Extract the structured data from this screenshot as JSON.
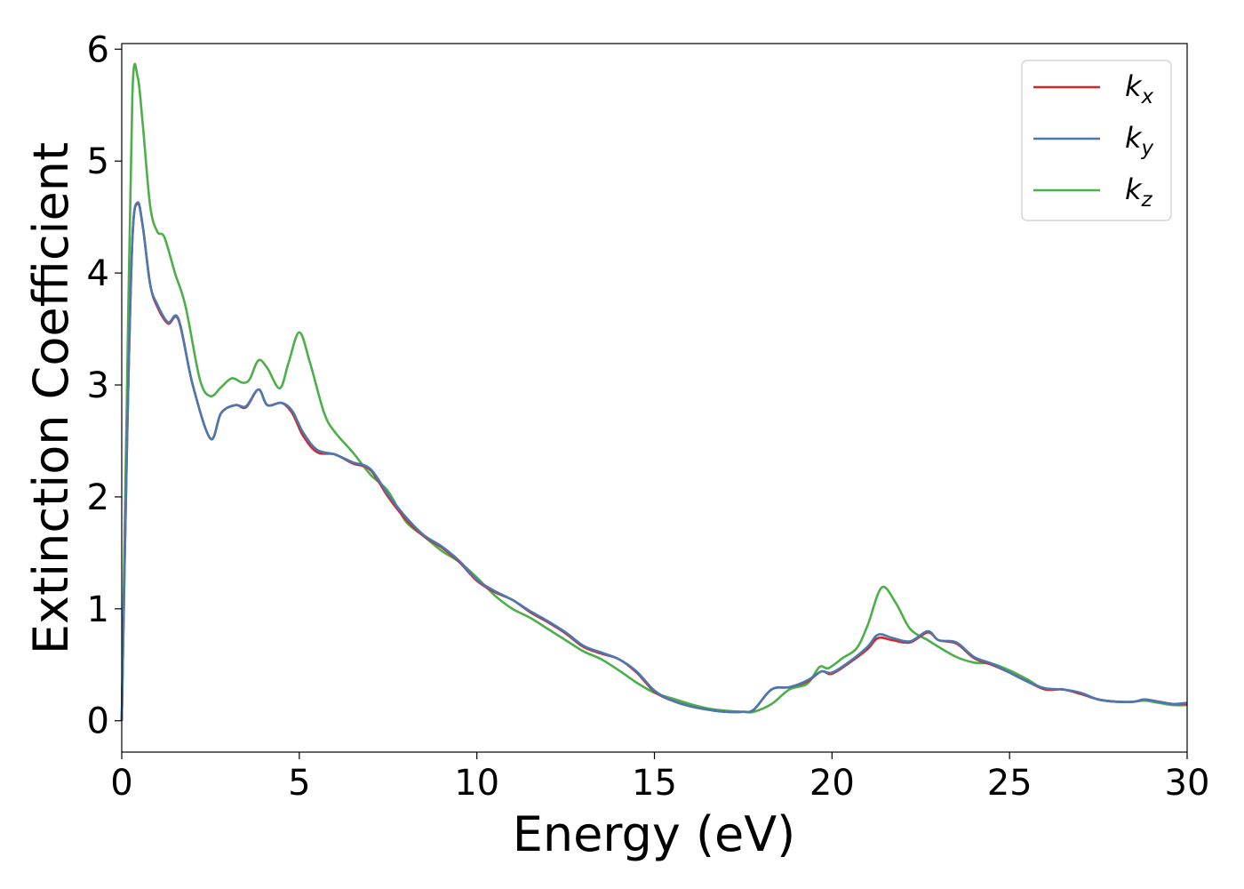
{
  "chart_data": {
    "type": "line",
    "xlabel": "Energy (eV)",
    "ylabel": "Extinction Coefficient",
    "xlim": [
      0,
      30
    ],
    "ylim": [
      -0.28,
      6.05
    ],
    "xticks": [
      0,
      5,
      10,
      15,
      20,
      25,
      30
    ],
    "yticks": [
      0,
      1,
      2,
      3,
      4,
      5,
      6
    ],
    "grid": false,
    "legend_position": "top-right",
    "series": [
      {
        "name": "k",
        "sub": "x",
        "color": "#d62728",
        "x": [
          0,
          0.15,
          0.3,
          0.45,
          0.6,
          0.8,
          1.0,
          1.3,
          1.6,
          2.0,
          2.5,
          2.8,
          3.2,
          3.5,
          3.85,
          4.1,
          4.5,
          4.8,
          5.1,
          5.5,
          6.0,
          6.5,
          7.0,
          7.5,
          8.0,
          8.5,
          9.0,
          9.5,
          10.0,
          10.5,
          11.0,
          11.5,
          12.0,
          12.5,
          13.0,
          13.5,
          14.0,
          14.5,
          15.0,
          15.5,
          16.0,
          16.5,
          17.0,
          17.5,
          17.8,
          18.3,
          18.8,
          19.3,
          19.7,
          20.0,
          20.5,
          21.0,
          21.3,
          21.7,
          22.2,
          22.7,
          23.0,
          23.5,
          24.0,
          24.5,
          25.0,
          25.5,
          26.0,
          26.5,
          27.0,
          27.5,
          28.0,
          28.5,
          28.8,
          29.2,
          29.6,
          30.0
        ],
        "y": [
          0.0,
          2.5,
          4.3,
          4.62,
          4.4,
          3.9,
          3.7,
          3.55,
          3.58,
          3.0,
          2.52,
          2.75,
          2.82,
          2.8,
          2.96,
          2.82,
          2.84,
          2.75,
          2.55,
          2.4,
          2.38,
          2.3,
          2.24,
          2.0,
          1.8,
          1.65,
          1.55,
          1.42,
          1.25,
          1.15,
          1.08,
          0.97,
          0.88,
          0.78,
          0.66,
          0.6,
          0.55,
          0.43,
          0.26,
          0.18,
          0.13,
          0.1,
          0.08,
          0.08,
          0.1,
          0.28,
          0.3,
          0.35,
          0.44,
          0.42,
          0.52,
          0.64,
          0.74,
          0.72,
          0.7,
          0.79,
          0.72,
          0.69,
          0.56,
          0.5,
          0.43,
          0.35,
          0.28,
          0.28,
          0.24,
          0.19,
          0.17,
          0.17,
          0.19,
          0.17,
          0.15,
          0.15
        ]
      },
      {
        "name": "k",
        "sub": "y",
        "color": "#4a78b0",
        "x": [
          0,
          0.15,
          0.3,
          0.45,
          0.6,
          0.8,
          1.0,
          1.3,
          1.6,
          2.0,
          2.5,
          2.8,
          3.2,
          3.5,
          3.85,
          4.1,
          4.5,
          4.8,
          5.1,
          5.5,
          6.0,
          6.5,
          7.0,
          7.5,
          8.0,
          8.5,
          9.0,
          9.5,
          10.0,
          10.5,
          11.0,
          11.5,
          12.0,
          12.5,
          13.0,
          13.5,
          14.0,
          14.5,
          15.0,
          15.5,
          16.0,
          16.5,
          17.0,
          17.5,
          17.8,
          18.3,
          18.8,
          19.3,
          19.7,
          20.0,
          20.5,
          21.0,
          21.3,
          21.7,
          22.2,
          22.7,
          23.0,
          23.5,
          24.0,
          24.5,
          25.0,
          25.5,
          26.0,
          26.5,
          27.0,
          27.5,
          28.0,
          28.5,
          28.8,
          29.2,
          29.6,
          30.0
        ],
        "y": [
          0.0,
          2.5,
          4.3,
          4.63,
          4.4,
          3.9,
          3.72,
          3.56,
          3.59,
          3.0,
          2.52,
          2.75,
          2.82,
          2.81,
          2.96,
          2.82,
          2.84,
          2.77,
          2.58,
          2.42,
          2.38,
          2.31,
          2.25,
          2.02,
          1.82,
          1.66,
          1.56,
          1.43,
          1.26,
          1.16,
          1.08,
          0.98,
          0.89,
          0.79,
          0.67,
          0.61,
          0.55,
          0.44,
          0.27,
          0.18,
          0.13,
          0.1,
          0.08,
          0.08,
          0.1,
          0.28,
          0.3,
          0.36,
          0.44,
          0.43,
          0.53,
          0.66,
          0.77,
          0.74,
          0.71,
          0.8,
          0.72,
          0.7,
          0.57,
          0.51,
          0.43,
          0.35,
          0.29,
          0.28,
          0.25,
          0.19,
          0.17,
          0.17,
          0.19,
          0.17,
          0.15,
          0.16
        ]
      },
      {
        "name": "k",
        "sub": "z",
        "color": "#4daf4a",
        "x": [
          0,
          0.15,
          0.3,
          0.45,
          0.6,
          0.8,
          1.0,
          1.2,
          1.5,
          1.8,
          2.2,
          2.5,
          2.8,
          3.1,
          3.4,
          3.6,
          3.85,
          4.1,
          4.45,
          4.7,
          5.0,
          5.3,
          5.7,
          6.0,
          6.5,
          7.0,
          7.5,
          8.0,
          8.5,
          9.0,
          9.5,
          10.0,
          10.5,
          11.0,
          11.5,
          12.0,
          12.5,
          13.0,
          13.5,
          14.0,
          14.5,
          15.0,
          15.5,
          16.0,
          16.5,
          17.0,
          17.5,
          17.8,
          18.3,
          18.8,
          19.3,
          19.65,
          19.9,
          20.3,
          20.7,
          21.0,
          21.4,
          21.8,
          22.2,
          22.7,
          23.0,
          23.5,
          24.0,
          24.5,
          25.0,
          25.5,
          26.0,
          26.5,
          27.0,
          27.5,
          28.0,
          28.5,
          28.8,
          29.2,
          29.6,
          30.0
        ],
        "y": [
          0.0,
          3.0,
          5.6,
          5.75,
          5.3,
          4.6,
          4.37,
          4.32,
          4.0,
          3.7,
          3.05,
          2.9,
          2.98,
          3.06,
          3.02,
          3.05,
          3.22,
          3.15,
          2.97,
          3.2,
          3.47,
          3.2,
          2.75,
          2.58,
          2.4,
          2.2,
          2.05,
          1.78,
          1.65,
          1.52,
          1.42,
          1.28,
          1.12,
          1.0,
          0.92,
          0.82,
          0.72,
          0.62,
          0.55,
          0.45,
          0.34,
          0.25,
          0.2,
          0.15,
          0.11,
          0.09,
          0.08,
          0.08,
          0.15,
          0.28,
          0.33,
          0.48,
          0.47,
          0.56,
          0.65,
          0.85,
          1.19,
          1.05,
          0.82,
          0.72,
          0.66,
          0.57,
          0.52,
          0.51,
          0.45,
          0.37,
          0.28,
          0.28,
          0.24,
          0.19,
          0.17,
          0.17,
          0.18,
          0.16,
          0.14,
          0.14
        ]
      }
    ]
  }
}
